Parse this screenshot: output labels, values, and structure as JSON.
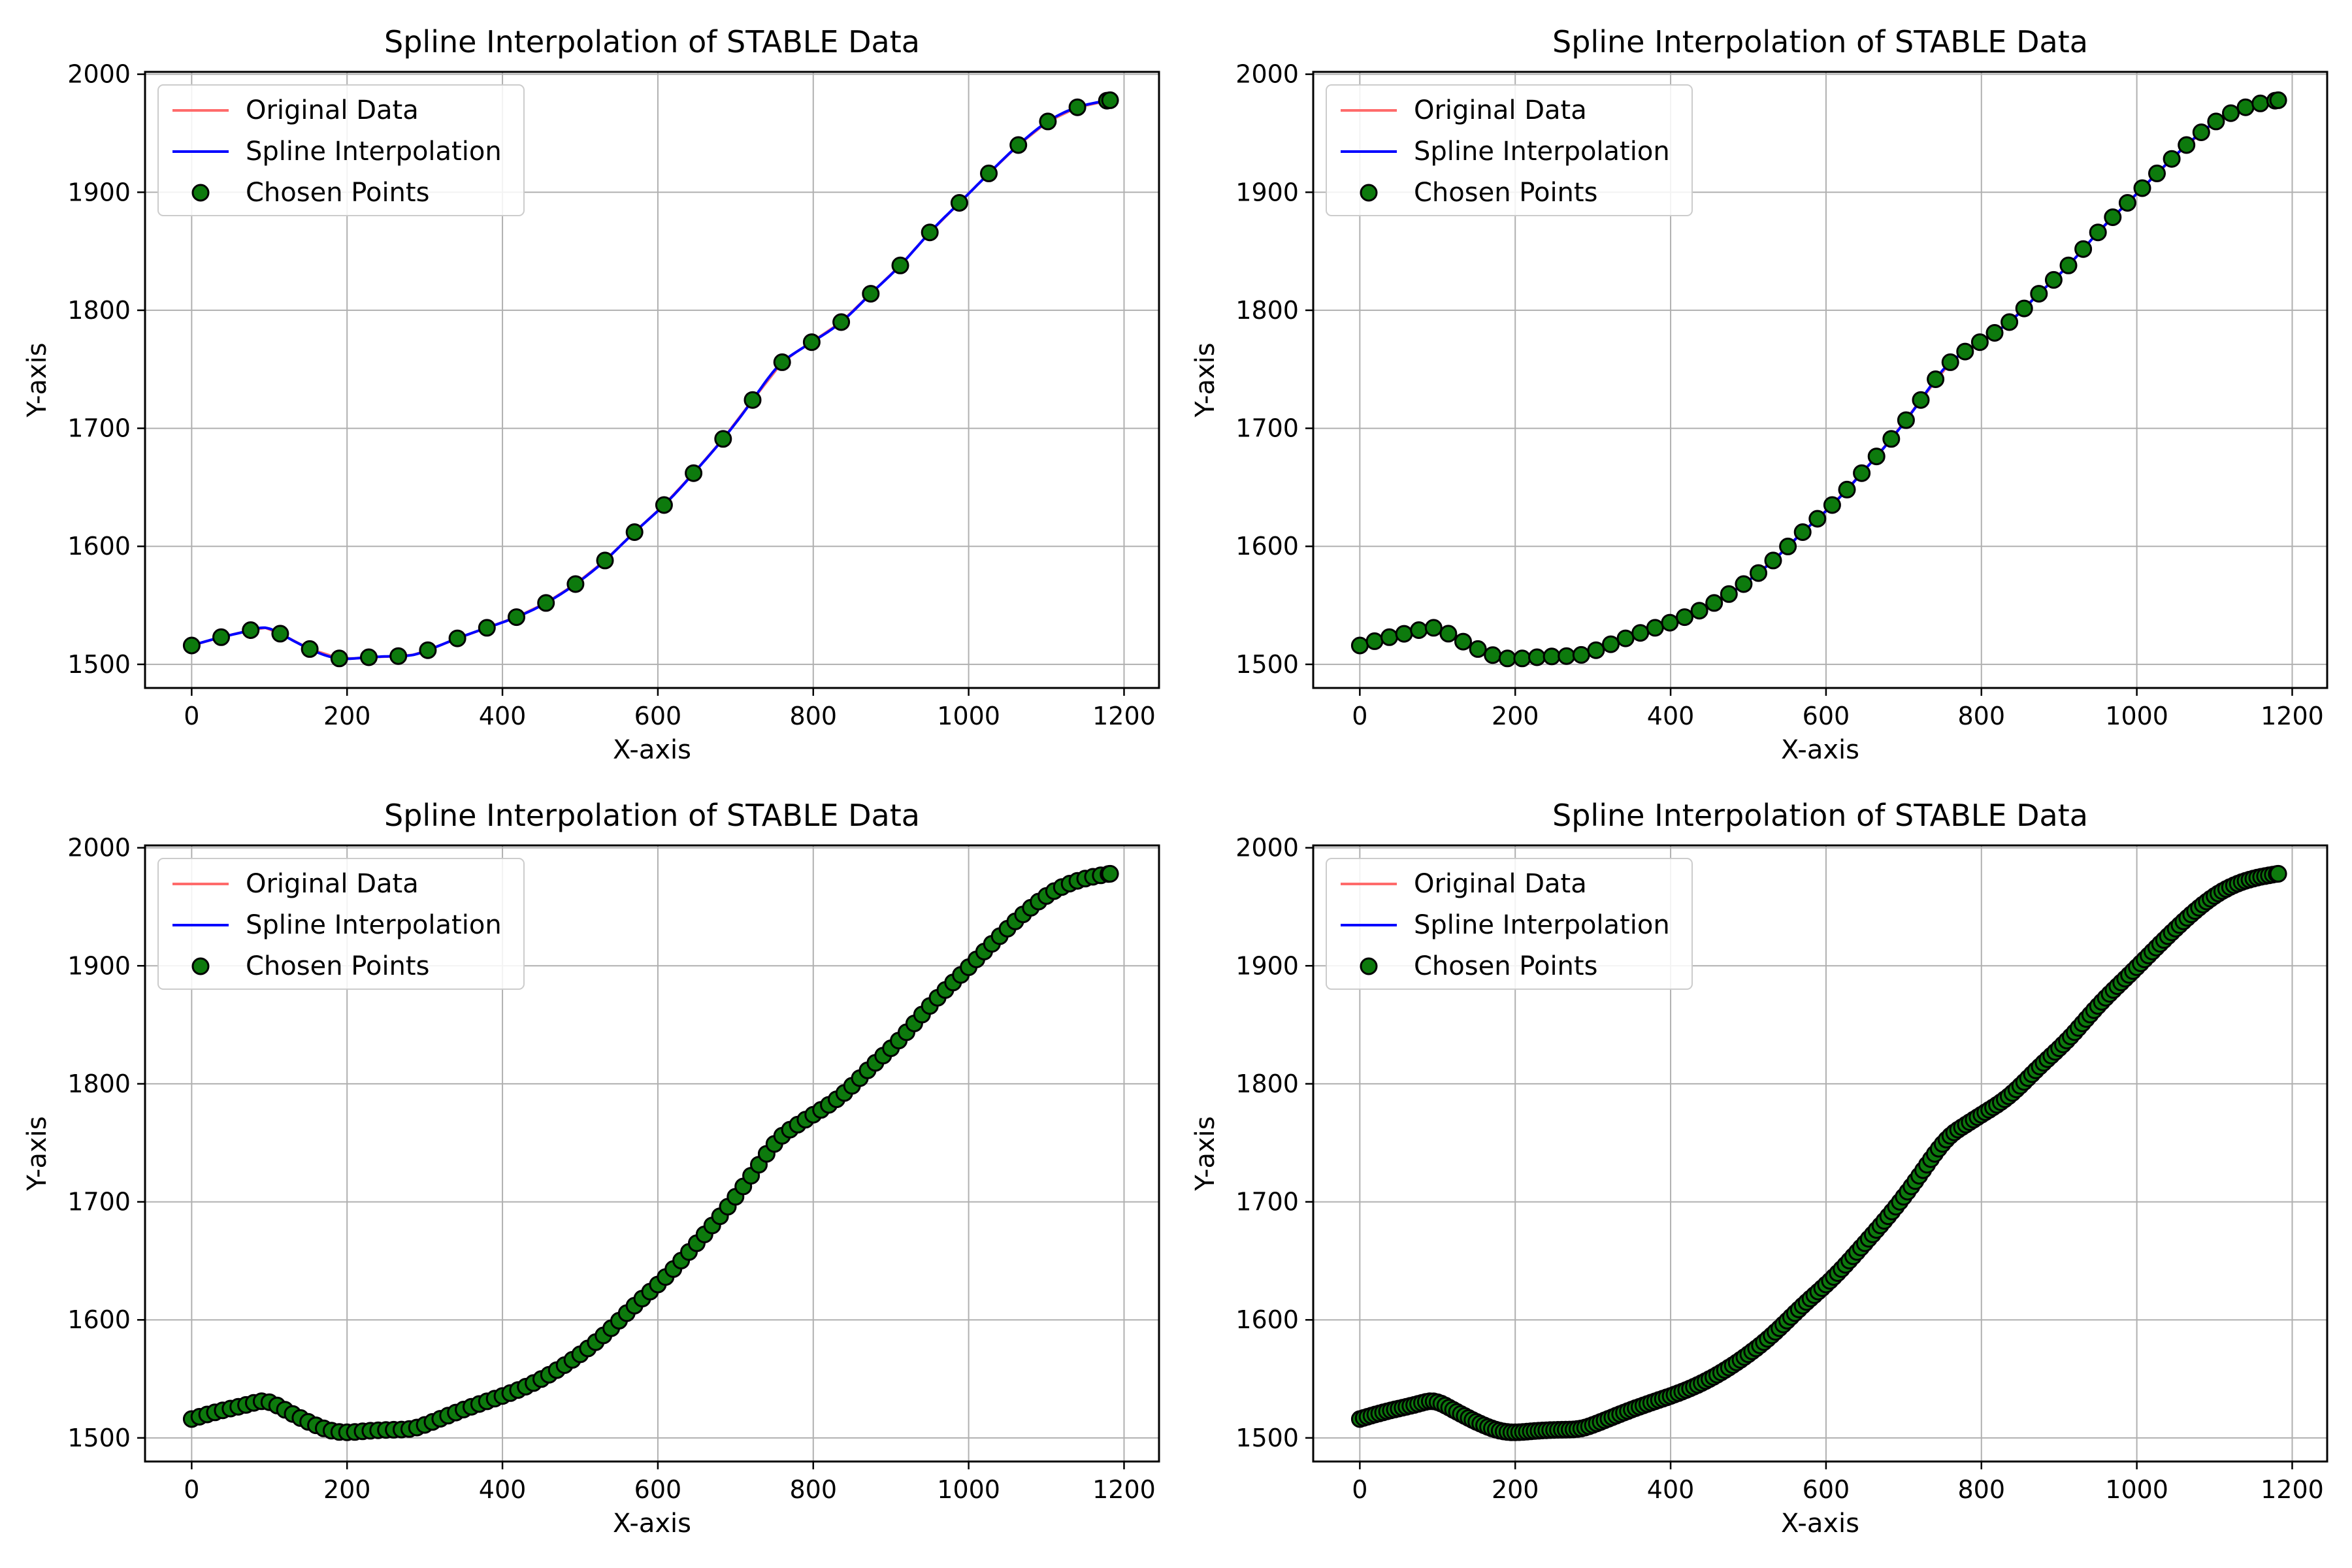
{
  "colors": {
    "original": "#ff6b6b",
    "spline": "#0000ff",
    "points_fill": "#0d7a0d",
    "points_edge": "#000000",
    "grid": "#b0b0b0"
  },
  "chart_data": [
    {
      "type": "line",
      "title": "Spline Interpolation of STABLE Data",
      "xlabel": "X-axis",
      "ylabel": "Y-axis",
      "xlim": [
        -60,
        1245
      ],
      "ylim": [
        1480,
        2002
      ],
      "xticks": [
        0,
        200,
        400,
        600,
        800,
        1000,
        1200
      ],
      "yticks": [
        1500,
        1600,
        1700,
        1800,
        1900,
        2000
      ],
      "grid": true,
      "legend_position": "top-left",
      "legend": [
        "Original Data",
        "Spline Interpolation",
        "Chosen Points"
      ],
      "chosen_points_step": 38
    },
    {
      "type": "line",
      "title": "Spline Interpolation of STABLE Data",
      "xlabel": "X-axis",
      "ylabel": "Y-axis",
      "xlim": [
        -60,
        1245
      ],
      "ylim": [
        1480,
        2002
      ],
      "xticks": [
        0,
        200,
        400,
        600,
        800,
        1000,
        1200
      ],
      "yticks": [
        1500,
        1600,
        1700,
        1800,
        1900,
        2000
      ],
      "grid": true,
      "legend_position": "top-left",
      "legend": [
        "Original Data",
        "Spline Interpolation",
        "Chosen Points"
      ],
      "chosen_points_step": 19
    },
    {
      "type": "line",
      "title": "Spline Interpolation of STABLE Data",
      "xlabel": "X-axis",
      "ylabel": "Y-axis",
      "xlim": [
        -60,
        1245
      ],
      "ylim": [
        1480,
        2002
      ],
      "xticks": [
        0,
        200,
        400,
        600,
        800,
        1000,
        1200
      ],
      "yticks": [
        1500,
        1600,
        1700,
        1800,
        1900,
        2000
      ],
      "grid": true,
      "legend_position": "top-left",
      "legend": [
        "Original Data",
        "Spline Interpolation",
        "Chosen Points"
      ],
      "chosen_points_step": 10
    },
    {
      "type": "line",
      "title": "Spline Interpolation of STABLE Data",
      "xlabel": "X-axis",
      "ylabel": "Y-axis",
      "xlim": [
        -60,
        1245
      ],
      "ylim": [
        1480,
        2002
      ],
      "xticks": [
        0,
        200,
        400,
        600,
        800,
        1000,
        1200
      ],
      "yticks": [
        1500,
        1600,
        1700,
        1800,
        1900,
        2000
      ],
      "grid": true,
      "legend_position": "top-left",
      "legend": [
        "Original Data",
        "Spline Interpolation",
        "Chosen Points"
      ],
      "chosen_points_step": 5
    }
  ],
  "series_original": {
    "name": "Original Data",
    "x": [
      0,
      38,
      76,
      95,
      114,
      152,
      190,
      209,
      228,
      266,
      285,
      304,
      342,
      380,
      418,
      456,
      494,
      532,
      570,
      608,
      646,
      684,
      722,
      760,
      779,
      798,
      836,
      874,
      912,
      950,
      988,
      1026,
      1064,
      1102,
      1140,
      1182
    ],
    "y": [
      1516,
      1523,
      1529,
      1531,
      1526,
      1513,
      1505,
      1505,
      1506,
      1507,
      1508,
      1512,
      1522,
      1531,
      1540,
      1552,
      1568,
      1588,
      1612,
      1635,
      1662,
      1691,
      1724,
      1756,
      1765,
      1773,
      1790,
      1814,
      1838,
      1866,
      1891,
      1916,
      1940,
      1960,
      1972,
      1978
    ]
  }
}
